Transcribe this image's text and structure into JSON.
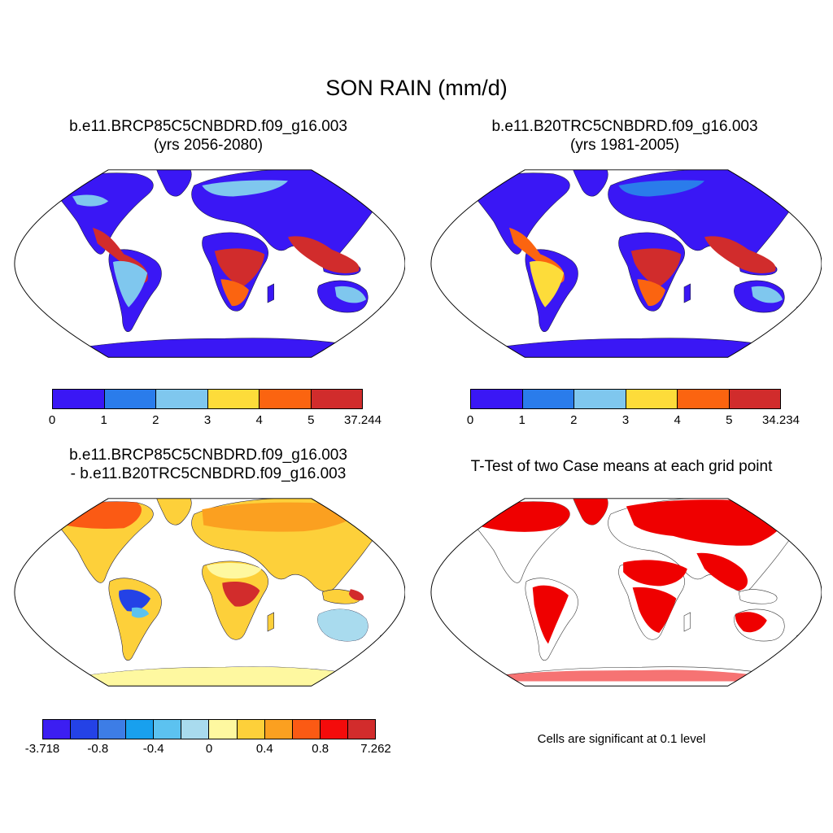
{
  "title": "SON RAIN (mm/d)",
  "panels": [
    {
      "id": "future",
      "title_line1": "b.e11.BRCP85C5CNBDRD.f09_g16.003",
      "title_line2": "(yrs 2056-2080)",
      "colorbar": {
        "colors": [
          "#3a17f5",
          "#2a7ceb",
          "#7fc7ee",
          "#fddc3a",
          "#fb6410",
          "#d12c2c"
        ],
        "labels": [
          "0",
          "1",
          "2",
          "3",
          "4",
          "5",
          "37.244"
        ]
      }
    },
    {
      "id": "historical",
      "title_line1": "b.e11.B20TRC5CNBDRD.f09_g16.003",
      "title_line2": "(yrs 1981-2005)",
      "colorbar": {
        "colors": [
          "#3a17f5",
          "#2a7ceb",
          "#7fc7ee",
          "#fddc3a",
          "#fb6410",
          "#d12c2c"
        ],
        "labels": [
          "0",
          "1",
          "2",
          "3",
          "4",
          "5",
          "34.234"
        ]
      }
    },
    {
      "id": "difference",
      "title_line1": "b.e11.BRCP85C5CNBDRD.f09_g16.003",
      "title_line2": "- b.e11.B20TRC5CNBDRD.f09_g16.003",
      "colorbar": {
        "colors": [
          "#3c1ef2",
          "#2442e6",
          "#3d7de6",
          "#18a0ee",
          "#5cc2f0",
          "#a9dbee",
          "#fef8a0",
          "#fdd03a",
          "#fba020",
          "#fb5a14",
          "#f40b0b",
          "#d22c2c"
        ],
        "labels": [
          "-3.718",
          "-0.8",
          "-0.4",
          "0",
          "0.4",
          "0.8",
          "7.262"
        ]
      }
    },
    {
      "id": "ttest",
      "title_line1": "T-Test of two Case means at each grid point",
      "note": "Cells are significant at 0.1 level"
    }
  ]
}
